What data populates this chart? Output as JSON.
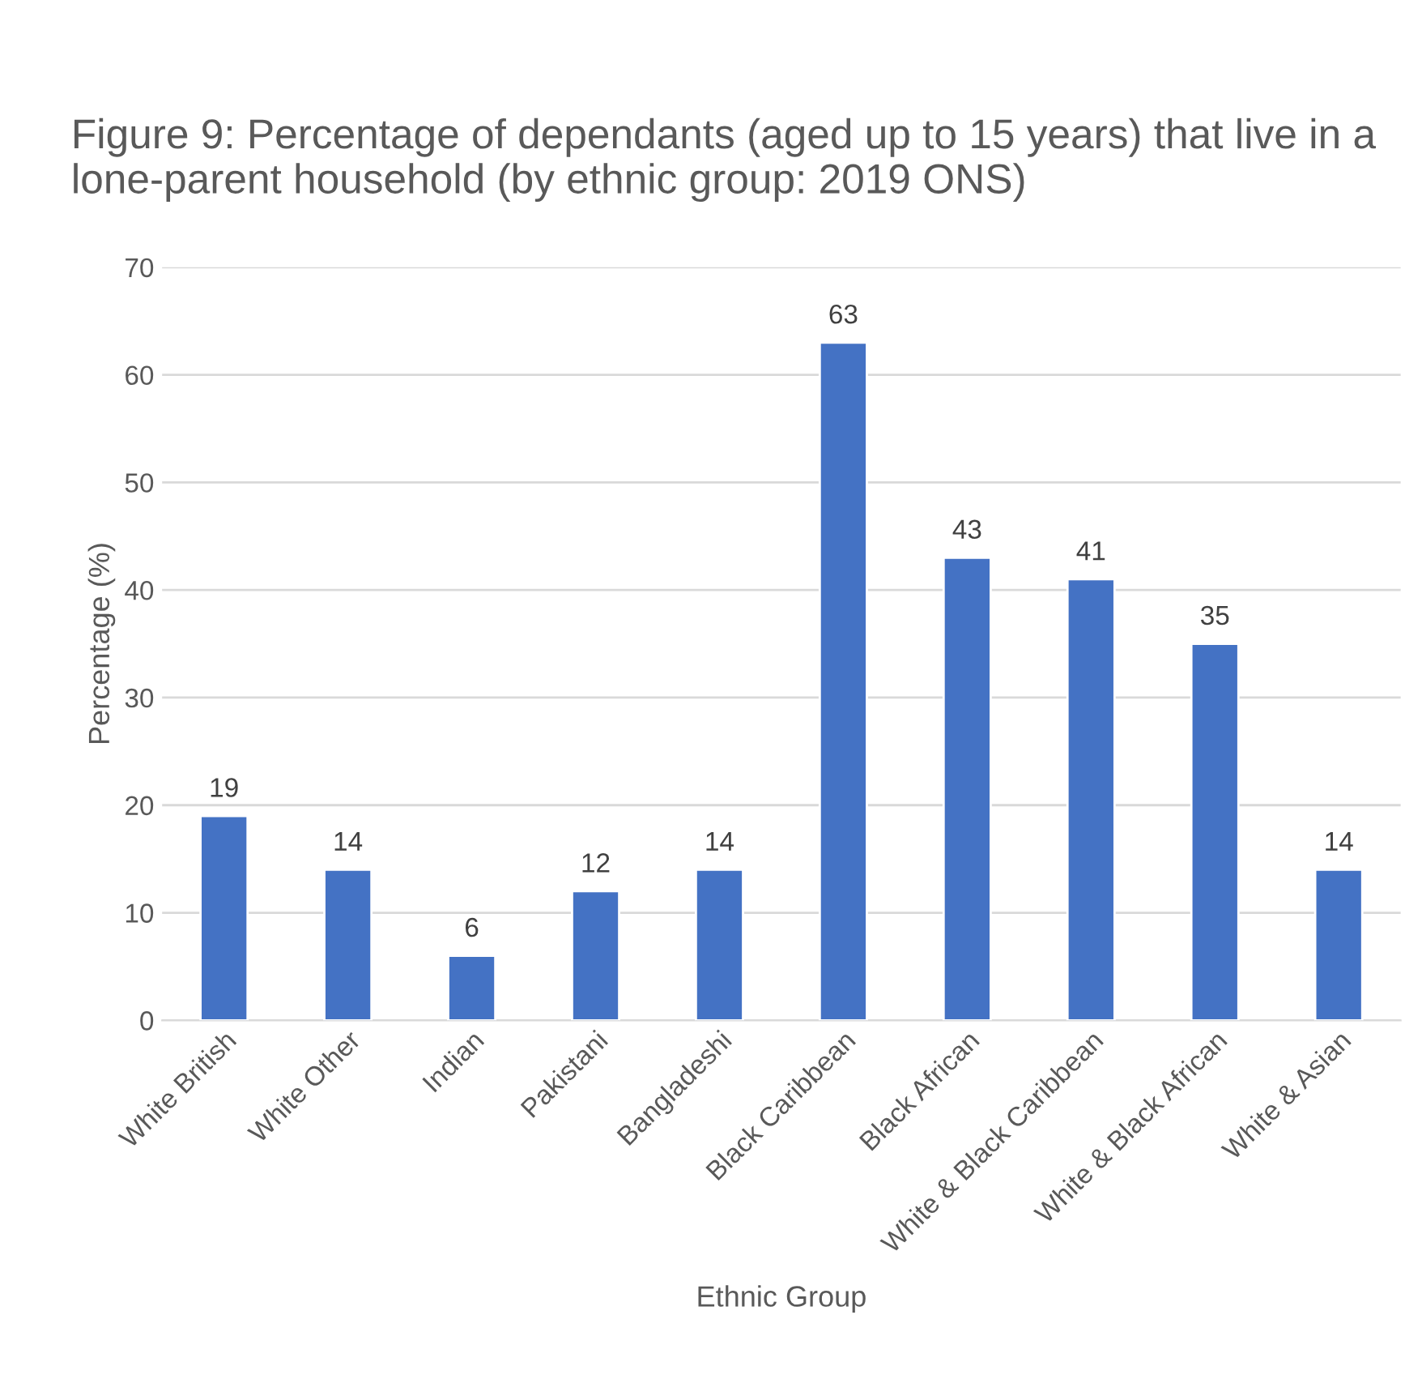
{
  "chart_data": {
    "type": "bar",
    "title": "Figure 9: Percentage of dependants (aged up to 15 years) that live in a lone-parent household (by ethnic group: 2019 ONS)",
    "xlabel": "Ethnic Group",
    "ylabel": "Percentage (%)",
    "categories": [
      "White British",
      "White Other",
      "Indian",
      "Pakistani",
      "Bangladeshi",
      "Black Caribbean",
      "Black African",
      "White & Black Caribbean",
      "White & Black African",
      "White & Asian"
    ],
    "values": [
      19,
      14,
      6,
      12,
      14,
      63,
      43,
      41,
      35,
      14
    ],
    "color": "#4472c4",
    "ylim": [
      0,
      70
    ],
    "yticks": [
      0,
      10,
      20,
      30,
      40,
      50,
      60,
      70
    ],
    "grid": "y",
    "data_labels": true,
    "legend": false
  }
}
